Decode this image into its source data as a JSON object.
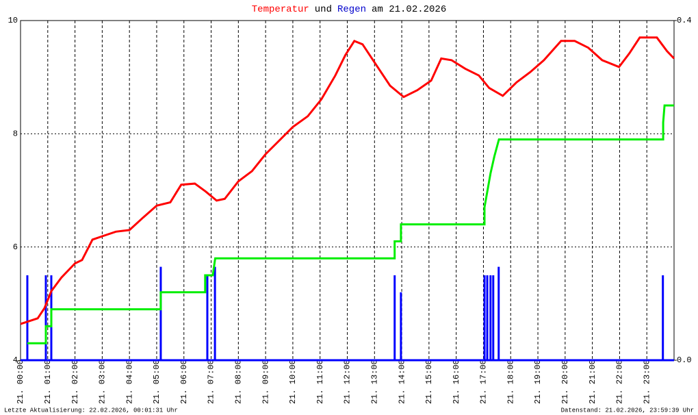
{
  "chart_data": {
    "type": "line",
    "title_parts": [
      {
        "text": "Temperatur",
        "color": "#ff0000"
      },
      {
        "text": "und",
        "color": "#000000"
      },
      {
        "text": "Regen",
        "color": "#0000cc"
      },
      {
        "text": "am 21.02.2026",
        "color": "#000000"
      }
    ],
    "footer_left": "Letzte Aktualisierung: 22.02.2026, 00:01:31 Uhr",
    "footer_right": "Datenstand: 21.02.2026, 23:59:39 Uhr",
    "xlim": [
      0,
      24
    ],
    "xticks": [
      {
        "value": 0,
        "label": "21. 00:00"
      },
      {
        "value": 1,
        "label": "21. 01:00"
      },
      {
        "value": 2,
        "label": "21. 02:00"
      },
      {
        "value": 3,
        "label": "21. 03:00"
      },
      {
        "value": 4,
        "label": "21. 04:00"
      },
      {
        "value": 5,
        "label": "21. 05:00"
      },
      {
        "value": 6,
        "label": "21. 06:00"
      },
      {
        "value": 7,
        "label": "21. 07:00"
      },
      {
        "value": 8,
        "label": "21. 08:00"
      },
      {
        "value": 9,
        "label": "21. 09:00"
      },
      {
        "value": 10,
        "label": "21. 10:00"
      },
      {
        "value": 11,
        "label": "21. 11:00"
      },
      {
        "value": 12,
        "label": "21. 12:00"
      },
      {
        "value": 13,
        "label": "21. 13:00"
      },
      {
        "value": 14,
        "label": "21. 14:00"
      },
      {
        "value": 15,
        "label": "21. 15:00"
      },
      {
        "value": 16,
        "label": "21. 16:00"
      },
      {
        "value": 17,
        "label": "21. 17:00"
      },
      {
        "value": 18,
        "label": "21. 18:00"
      },
      {
        "value": 19,
        "label": "21. 19:00"
      },
      {
        "value": 20,
        "label": "21. 20:00"
      },
      {
        "value": 21,
        "label": "21. 21:00"
      },
      {
        "value": 22,
        "label": "21. 22:00"
      },
      {
        "value": 23,
        "label": "21. 23:00"
      }
    ],
    "ylim": [
      4,
      10
    ],
    "yticks": [
      4,
      6,
      8,
      10
    ],
    "y2lim": [
      0,
      0.4
    ],
    "y2ticks": [
      {
        "value": 0,
        "label": "0.0"
      },
      0.4
    ],
    "grid": true,
    "series": [
      {
        "type": "line",
        "color": "#ff0000",
        "x": [
          0,
          0.25,
          0.63,
          0.88,
          1.13,
          1.5,
          2.0,
          2.26,
          2.64,
          3.0,
          3.5,
          4.0,
          4.5,
          5.0,
          5.5,
          5.9,
          6.4,
          6.8,
          7.2,
          7.5,
          8.0,
          8.5,
          9.0,
          9.5,
          10.0,
          10.55,
          11.05,
          11.56,
          11.93,
          12.26,
          12.56,
          13.07,
          13.57,
          14.07,
          14.57,
          15.08,
          15.45,
          15.83,
          16.33,
          16.83,
          17.21,
          17.71,
          18.22,
          18.72,
          19.22,
          19.85,
          20.35,
          20.85,
          21.36,
          21.98,
          22.36,
          22.74,
          23.37,
          23.74,
          24.0
        ],
        "values": [
          4.64,
          4.68,
          4.74,
          4.92,
          5.22,
          5.46,
          5.71,
          5.77,
          6.13,
          6.19,
          6.27,
          6.3,
          6.52,
          6.73,
          6.79,
          7.1,
          7.12,
          6.98,
          6.82,
          6.85,
          7.16,
          7.34,
          7.64,
          7.88,
          8.12,
          8.31,
          8.61,
          9.03,
          9.39,
          9.64,
          9.58,
          9.21,
          8.85,
          8.65,
          8.77,
          8.94,
          9.33,
          9.3,
          9.15,
          9.03,
          8.81,
          8.67,
          8.91,
          9.09,
          9.3,
          9.64,
          9.64,
          9.52,
          9.3,
          9.18,
          9.42,
          9.7,
          9.7,
          9.46,
          9.33
        ]
      },
      {
        "type": "bar",
        "axis": "y2",
        "color": "#0000ff",
        "x": [
          0.25,
          0.93,
          1.13,
          5.15,
          6.86,
          7.14,
          13.74,
          13.97,
          17.04,
          17.14,
          17.26,
          17.36,
          17.56,
          23.59
        ],
        "values": [
          0.1,
          0.1,
          0.1,
          0.11,
          0.1,
          0.11,
          0.1,
          0.08,
          0.1,
          0.1,
          0.1,
          0.1,
          0.11,
          0.1
        ]
      },
      {
        "type": "line",
        "axis": "y2",
        "color": "#00ee00",
        "x": [
          0.25,
          0.93,
          0.93,
          1.13,
          1.13,
          5.15,
          5.15,
          6.78,
          6.78,
          7.06,
          7.15,
          13.74,
          13.74,
          13.97,
          13.97,
          17.04,
          17.04,
          17.15,
          17.26,
          17.4,
          17.57,
          23.6,
          23.6,
          23.65,
          24
        ],
        "values": [
          0.02,
          0.02,
          0.04,
          0.04,
          0.06,
          0.06,
          0.08,
          0.08,
          0.1,
          0.1,
          0.12,
          0.12,
          0.14,
          0.14,
          0.16,
          0.16,
          0.18,
          0.2,
          0.22,
          0.24,
          0.26,
          0.26,
          0.28,
          0.3,
          0.3
        ]
      }
    ]
  }
}
